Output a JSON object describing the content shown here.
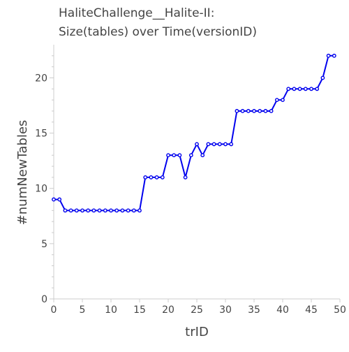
{
  "chart_data": {
    "type": "line",
    "title_lines": [
      "HaliteChallenge__Halite-II:",
      "Size(tables) over Time(versionID)"
    ],
    "xlabel": "trID",
    "ylabel": "#numNewTables",
    "xlim": [
      0,
      50
    ],
    "ylim": [
      0,
      23
    ],
    "x_ticks": [
      0,
      5,
      10,
      15,
      20,
      25,
      30,
      35,
      40,
      45,
      50
    ],
    "y_ticks": [
      0,
      5,
      10,
      15,
      20
    ],
    "grid": false,
    "series": [
      {
        "color": "#0000ee",
        "x": [
          0,
          1,
          2,
          3,
          4,
          5,
          6,
          7,
          8,
          9,
          10,
          11,
          12,
          13,
          14,
          15,
          16,
          17,
          18,
          19,
          20,
          21,
          22,
          23,
          24,
          25,
          26,
          27,
          28,
          29,
          30,
          31,
          32,
          33,
          34,
          35,
          36,
          37,
          38,
          39,
          40,
          41,
          42,
          43,
          44,
          45,
          46,
          47,
          48,
          49
        ],
        "y": [
          9,
          9,
          8,
          8,
          8,
          8,
          8,
          8,
          8,
          8,
          8,
          8,
          8,
          8,
          8,
          8,
          11,
          11,
          11,
          11,
          13,
          13,
          13,
          11,
          13,
          14,
          13,
          14,
          14,
          14,
          14,
          14,
          17,
          17,
          17,
          17,
          17,
          17,
          17,
          18,
          18,
          19,
          19,
          19,
          19,
          19,
          19,
          20,
          22,
          22
        ]
      }
    ]
  }
}
